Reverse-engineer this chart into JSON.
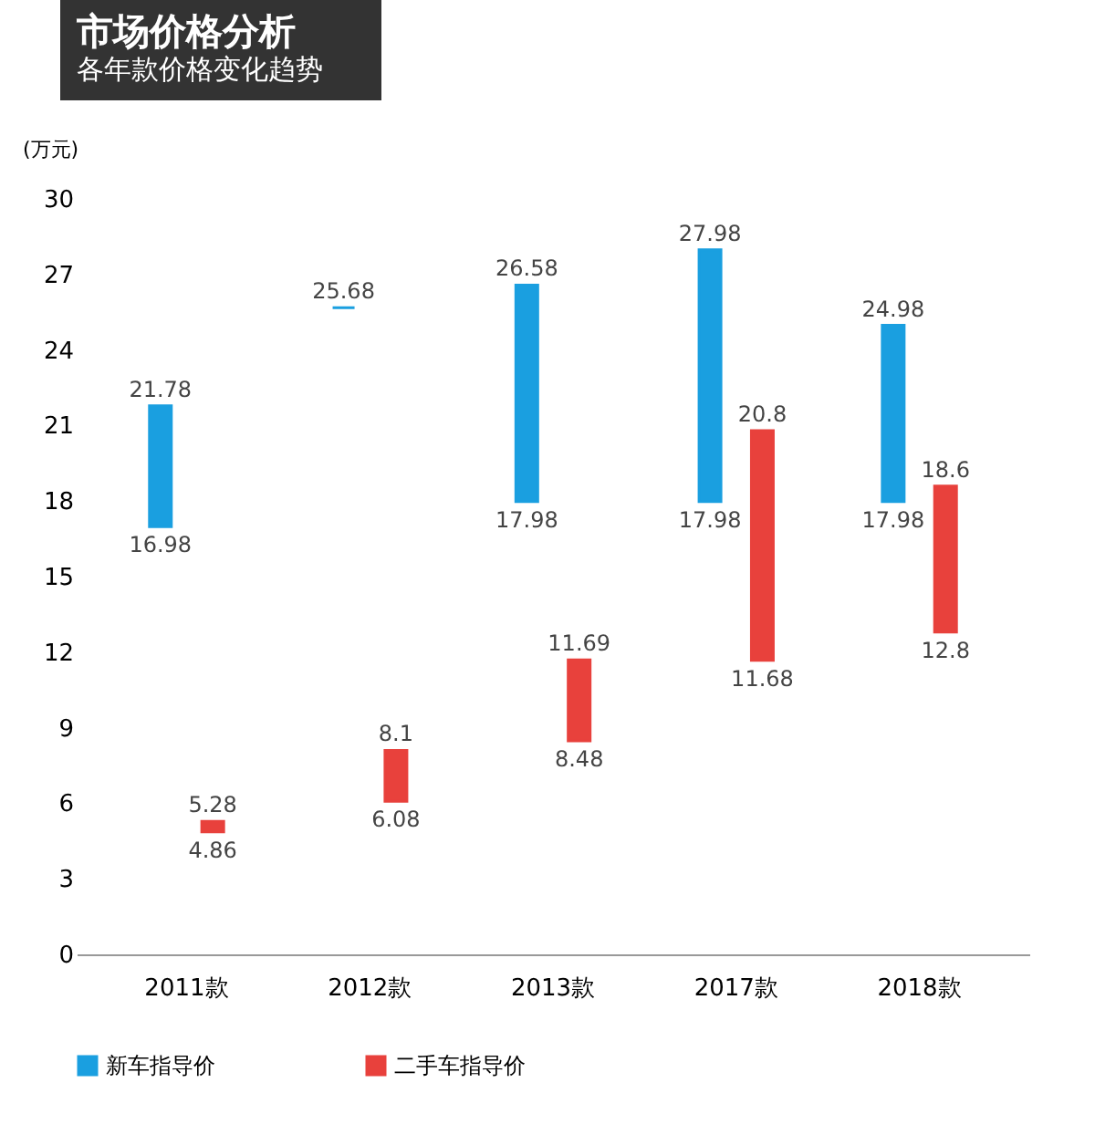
{
  "chart_data": {
    "type": "bar",
    "title": "市场价格分析",
    "subtitle": "各年款价格变化趋势",
    "ylabel": "(万元)",
    "categories": [
      "2011款",
      "2012款",
      "2013款",
      "2017款",
      "2018款"
    ],
    "series": [
      {
        "name": "新车指导价",
        "color": "#1a9fe0",
        "base": [
          16.98,
          25.68,
          17.98,
          17.98,
          17.98
        ],
        "values": [
          4.8,
          0,
          8.6,
          10,
          7
        ]
      },
      {
        "name": "二手车指导价",
        "color": "#e8413c",
        "base": [
          4.86,
          6.08,
          8.48,
          11.68,
          12.8
        ],
        "values": [
          0.42,
          2.02,
          3.21,
          9.12,
          5.8
        ]
      }
    ],
    "ylim": [
      0,
      30
    ],
    "yticks": [
      0,
      3,
      6,
      9,
      12,
      15,
      18,
      21,
      24,
      27,
      30
    ],
    "legend": "bottom",
    "annotations": [
      "21.78",
      "16.98",
      "25.68",
      "26.58",
      "17.98",
      "27.98",
      "17.98",
      "24.98",
      "17.98",
      "5.28",
      "4.86",
      "8.1",
      "6.08",
      "11.69",
      "8.48",
      "20.8",
      "11.68",
      "18.6",
      "12.8"
    ]
  }
}
